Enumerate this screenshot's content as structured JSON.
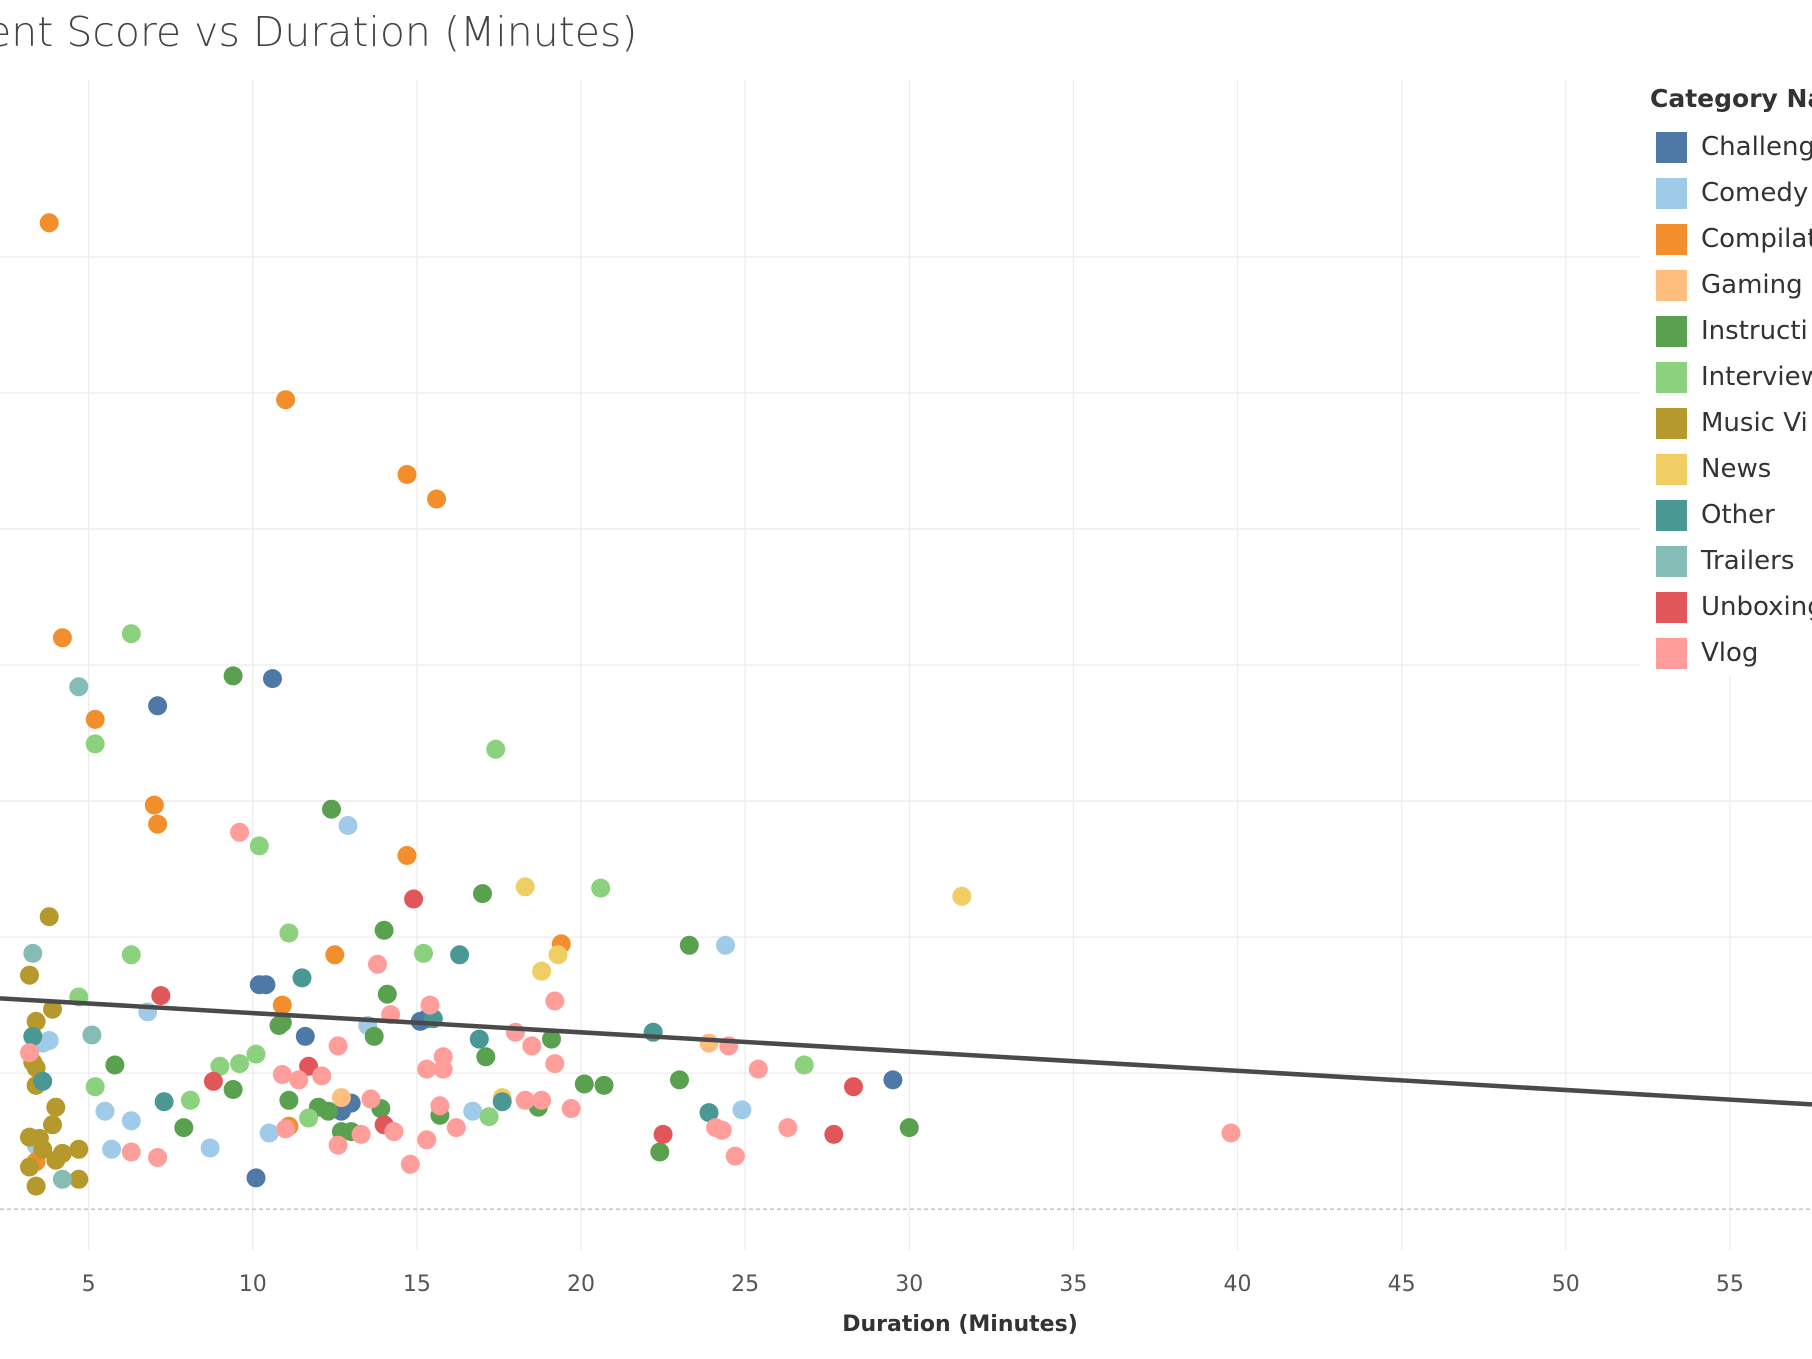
{
  "chart_data": {
    "type": "scatter",
    "title": "ent Score vs Duration (Minutes)",
    "xlabel": "Duration (Minutes)",
    "ylabel": "",
    "xlim": [
      2.3,
      57.5
    ],
    "x_ticks": [
      5,
      10,
      15,
      20,
      25,
      30,
      35,
      40,
      45,
      50,
      55
    ],
    "ylim": [
      -0.3,
      8.3
    ],
    "legend_title": "Category Na",
    "legend_position": "top-right",
    "grid": true,
    "trendline": {
      "x": [
        2.3,
        57.5
      ],
      "y": [
        1.55,
        0.77
      ]
    },
    "series": [
      {
        "name": "Challeng",
        "color": "#4E79A7",
        "points": [
          [
            10.6,
            3.9
          ],
          [
            7.1,
            3.7
          ],
          [
            10.2,
            1.65
          ],
          [
            10.4,
            1.65
          ],
          [
            11.6,
            1.27
          ],
          [
            15.1,
            1.38
          ],
          [
            15.3,
            1.4
          ],
          [
            12.7,
            0.72
          ],
          [
            13.0,
            0.78
          ],
          [
            29.5,
            0.95
          ],
          [
            10.1,
            0.23
          ]
        ]
      },
      {
        "name": "Comedy S",
        "color": "#A0CBE8",
        "points": [
          [
            12.9,
            2.82
          ],
          [
            24.4,
            1.94
          ],
          [
            6.8,
            1.45
          ],
          [
            3.6,
            1.22
          ],
          [
            3.8,
            1.24
          ],
          [
            13.5,
            1.35
          ],
          [
            5.5,
            0.72
          ],
          [
            6.3,
            0.65
          ],
          [
            10.5,
            0.56
          ],
          [
            16.7,
            0.72
          ],
          [
            24.9,
            0.73
          ],
          [
            5.7,
            0.44
          ],
          [
            8.7,
            0.45
          ],
          [
            3.4,
            0.47
          ]
        ]
      },
      {
        "name": "Compilat",
        "color": "#F28E2B",
        "points": [
          [
            3.8,
            7.25
          ],
          [
            11.0,
            5.95
          ],
          [
            14.7,
            5.4
          ],
          [
            15.6,
            5.22
          ],
          [
            4.2,
            4.2
          ],
          [
            5.2,
            3.6
          ],
          [
            7.0,
            2.97
          ],
          [
            7.1,
            2.83
          ],
          [
            14.7,
            2.6
          ],
          [
            19.4,
            1.95
          ],
          [
            12.5,
            1.87
          ],
          [
            10.9,
            1.5
          ],
          [
            11.1,
            0.61
          ],
          [
            3.4,
            0.35
          ]
        ]
      },
      {
        "name": "Gaming",
        "color": "#FFBE7D",
        "points": [
          [
            23.9,
            1.22
          ],
          [
            12.7,
            0.82
          ]
        ]
      },
      {
        "name": "Instructi",
        "color": "#59A14F",
        "points": [
          [
            9.4,
            3.92
          ],
          [
            12.4,
            2.94
          ],
          [
            17.0,
            2.32
          ],
          [
            14.0,
            2.05
          ],
          [
            23.3,
            1.94
          ],
          [
            14.1,
            1.58
          ],
          [
            10.8,
            1.35
          ],
          [
            10.9,
            1.37
          ],
          [
            13.7,
            1.27
          ],
          [
            19.1,
            1.25
          ],
          [
            17.1,
            1.12
          ],
          [
            5.8,
            1.06
          ],
          [
            9.4,
            0.88
          ],
          [
            11.1,
            0.8
          ],
          [
            12.0,
            0.75
          ],
          [
            12.3,
            0.72
          ],
          [
            13.9,
            0.74
          ],
          [
            15.7,
            0.69
          ],
          [
            18.7,
            0.75
          ],
          [
            20.1,
            0.92
          ],
          [
            20.7,
            0.91
          ],
          [
            23.0,
            0.95
          ],
          [
            7.9,
            0.6
          ],
          [
            12.7,
            0.57
          ],
          [
            13.0,
            0.57
          ],
          [
            30.0,
            0.6
          ],
          [
            22.4,
            0.42
          ]
        ]
      },
      {
        "name": "Interview",
        "color": "#8CD17D",
        "points": [
          [
            6.3,
            4.23
          ],
          [
            5.2,
            3.42
          ],
          [
            17.4,
            3.38
          ],
          [
            10.2,
            2.67
          ],
          [
            20.6,
            2.36
          ],
          [
            11.1,
            2.03
          ],
          [
            6.3,
            1.87
          ],
          [
            15.2,
            1.88
          ],
          [
            4.7,
            1.56
          ],
          [
            5.2,
            0.9
          ],
          [
            8.1,
            0.8
          ],
          [
            9.0,
            1.05
          ],
          [
            9.6,
            1.07
          ],
          [
            10.1,
            1.14
          ],
          [
            26.8,
            1.06
          ],
          [
            11.7,
            0.67
          ],
          [
            17.2,
            0.68
          ]
        ]
      },
      {
        "name": "Music Vi",
        "color": "#B6992D",
        "points": [
          [
            3.8,
            2.15
          ],
          [
            3.2,
            1.72
          ],
          [
            3.4,
            1.38
          ],
          [
            3.9,
            1.47
          ],
          [
            3.3,
            1.08
          ],
          [
            3.4,
            1.04
          ],
          [
            3.4,
            0.91
          ],
          [
            4.0,
            0.75
          ],
          [
            3.9,
            0.62
          ],
          [
            3.2,
            0.53
          ],
          [
            3.5,
            0.52
          ],
          [
            3.6,
            0.44
          ],
          [
            4.2,
            0.41
          ],
          [
            4.7,
            0.44
          ],
          [
            4.0,
            0.36
          ],
          [
            3.2,
            0.31
          ],
          [
            4.7,
            0.22
          ],
          [
            3.4,
            0.17
          ]
        ]
      },
      {
        "name": "News",
        "color": "#F1CE63",
        "points": [
          [
            31.6,
            2.3
          ],
          [
            18.3,
            2.37
          ],
          [
            19.3,
            1.87
          ],
          [
            18.8,
            1.75
          ],
          [
            17.6,
            0.82
          ]
        ]
      },
      {
        "name": "Other",
        "color": "#499894",
        "points": [
          [
            16.3,
            1.87
          ],
          [
            11.5,
            1.7
          ],
          [
            15.5,
            1.4
          ],
          [
            16.9,
            1.25
          ],
          [
            22.2,
            1.3
          ],
          [
            7.3,
            0.79
          ],
          [
            23.9,
            0.71
          ],
          [
            17.6,
            0.79
          ],
          [
            3.3,
            1.27
          ],
          [
            3.6,
            0.94
          ]
        ]
      },
      {
        "name": "Trailers",
        "color": "#86BCB6",
        "points": [
          [
            4.7,
            3.84
          ],
          [
            3.3,
            1.88
          ],
          [
            5.1,
            1.28
          ],
          [
            4.2,
            0.22
          ]
        ]
      },
      {
        "name": "Unboxing",
        "color": "#E15759",
        "points": [
          [
            14.9,
            2.28
          ],
          [
            7.2,
            1.57
          ],
          [
            11.7,
            1.05
          ],
          [
            8.8,
            0.94
          ],
          [
            28.3,
            0.9
          ],
          [
            14.0,
            0.62
          ],
          [
            22.5,
            0.55
          ],
          [
            27.7,
            0.55
          ]
        ]
      },
      {
        "name": "Vlog",
        "color": "#FF9D9A",
        "points": [
          [
            9.6,
            2.77
          ],
          [
            13.8,
            1.8
          ],
          [
            15.4,
            1.5
          ],
          [
            19.2,
            1.53
          ],
          [
            14.2,
            1.43
          ],
          [
            18.0,
            1.3
          ],
          [
            18.5,
            1.2
          ],
          [
            24.5,
            1.2
          ],
          [
            15.8,
            1.12
          ],
          [
            19.2,
            1.07
          ],
          [
            15.3,
            1.03
          ],
          [
            15.8,
            1.03
          ],
          [
            25.4,
            1.03
          ],
          [
            10.9,
            0.99
          ],
          [
            11.4,
            0.95
          ],
          [
            12.1,
            0.98
          ],
          [
            12.6,
            1.2
          ],
          [
            13.6,
            0.81
          ],
          [
            18.3,
            0.8
          ],
          [
            18.8,
            0.8
          ],
          [
            19.7,
            0.74
          ],
          [
            15.7,
            0.76
          ],
          [
            16.2,
            0.6
          ],
          [
            11.0,
            0.59
          ],
          [
            13.3,
            0.55
          ],
          [
            14.3,
            0.57
          ],
          [
            24.1,
            0.6
          ],
          [
            24.3,
            0.58
          ],
          [
            26.3,
            0.6
          ],
          [
            39.8,
            0.56
          ],
          [
            12.6,
            0.47
          ],
          [
            15.3,
            0.51
          ],
          [
            6.3,
            0.42
          ],
          [
            7.1,
            0.38
          ],
          [
            24.7,
            0.39
          ],
          [
            14.8,
            0.33
          ],
          [
            3.2,
            1.15
          ]
        ]
      }
    ]
  }
}
